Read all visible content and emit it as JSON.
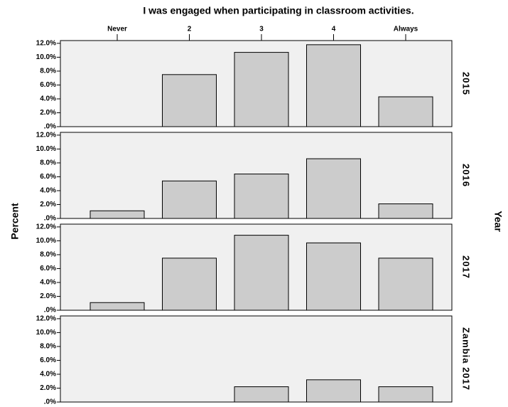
{
  "title": "I was engaged when participating in classroom activities.",
  "y_label": "Percent",
  "facet_axis_label": "Year",
  "chart_data": {
    "type": "bar",
    "facet": true,
    "categories": [
      "Never",
      "2",
      "3",
      "4",
      "Always"
    ],
    "series": [
      {
        "name": "2015",
        "color": "#cccccc",
        "values": [
          0,
          7.5,
          10.7,
          11.8,
          4.3
        ]
      },
      {
        "name": "2016",
        "color": "#cccccc",
        "values": [
          1.1,
          5.4,
          6.4,
          8.6,
          2.1
        ]
      },
      {
        "name": "2017",
        "color": "#cccccc",
        "values": [
          1.1,
          7.5,
          10.8,
          9.7,
          7.5
        ]
      },
      {
        "name": "Zambia 2017",
        "color": "#cccccc",
        "values": [
          0,
          0,
          2.2,
          3.2,
          2.2
        ]
      }
    ],
    "ylim": [
      0,
      12.4
    ],
    "yticks": [
      {
        "value": 0,
        "label": ".0%"
      },
      {
        "value": 2,
        "label": "2.0%"
      },
      {
        "value": 4,
        "label": "4.0%"
      },
      {
        "value": 6,
        "label": "6.0%"
      },
      {
        "value": 8,
        "label": "8.0%"
      },
      {
        "value": 10,
        "label": "10.0%"
      },
      {
        "value": 12,
        "label": "12.0%"
      }
    ]
  }
}
